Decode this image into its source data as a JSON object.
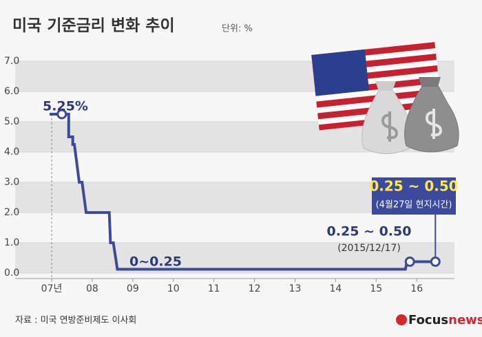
{
  "chart_data": {
    "type": "step-line",
    "title": "미국 기준금리 변화 추이",
    "subtitle": "단위: %",
    "x": [
      2006.95,
      2007.25,
      2007.42,
      2007.42,
      2007.52,
      2007.52,
      2007.56,
      2007.68,
      2007.75,
      2007.85,
      2008.42,
      2008.45,
      2008.52,
      2008.62,
      2015.72,
      2015.76,
      2016.46
    ],
    "values": [
      5.25,
      5.25,
      5.25,
      4.5,
      4.5,
      4.25,
      4.25,
      3.0,
      3.0,
      2.0,
      2.0,
      1.0,
      1.0,
      0.125,
      0.125,
      0.375,
      0.375
    ],
    "markers": {
      "x": [
        2007.25,
        2015.83,
        2016.46
      ],
      "values": [
        5.25,
        0.375,
        0.375
      ]
    },
    "color": "#3b4a9c",
    "xlim": [
      2006.1,
      2016.93
    ],
    "xticks": [
      {
        "value": 2007,
        "label": "07년"
      },
      {
        "value": 2008,
        "label": "08"
      },
      {
        "value": 2009,
        "label": "09"
      },
      {
        "value": 2010,
        "label": "10"
      },
      {
        "value": 2011,
        "label": "11"
      },
      {
        "value": 2012,
        "label": "12"
      },
      {
        "value": 2013,
        "label": "13"
      },
      {
        "value": 2014,
        "label": "14"
      },
      {
        "value": 2015,
        "label": "15"
      },
      {
        "value": 2016,
        "label": "16"
      }
    ],
    "ylim": [
      0,
      7
    ],
    "yticks": [
      {
        "value": 0,
        "label": "0.0"
      },
      {
        "value": 1,
        "label": "1.0"
      },
      {
        "value": 2,
        "label": "2.0"
      },
      {
        "value": 3,
        "label": "3.0"
      },
      {
        "value": 4,
        "label": "4.0"
      },
      {
        "value": 5,
        "label": "5.0"
      },
      {
        "value": 6,
        "label": "6.0"
      },
      {
        "value": 7,
        "label": "7.0"
      }
    ],
    "bands": true,
    "annotations": [
      "5.25%",
      "0~0.25",
      "0.25 ~ 0.50",
      "(2015/12/17)"
    ],
    "highlight": [
      "0.25 ~ 0.50",
      "(4월27일 현지시간)"
    ],
    "source": "자료 : 미국 연방준비제도 이사회",
    "logo": [
      "Focus",
      "news"
    ]
  }
}
